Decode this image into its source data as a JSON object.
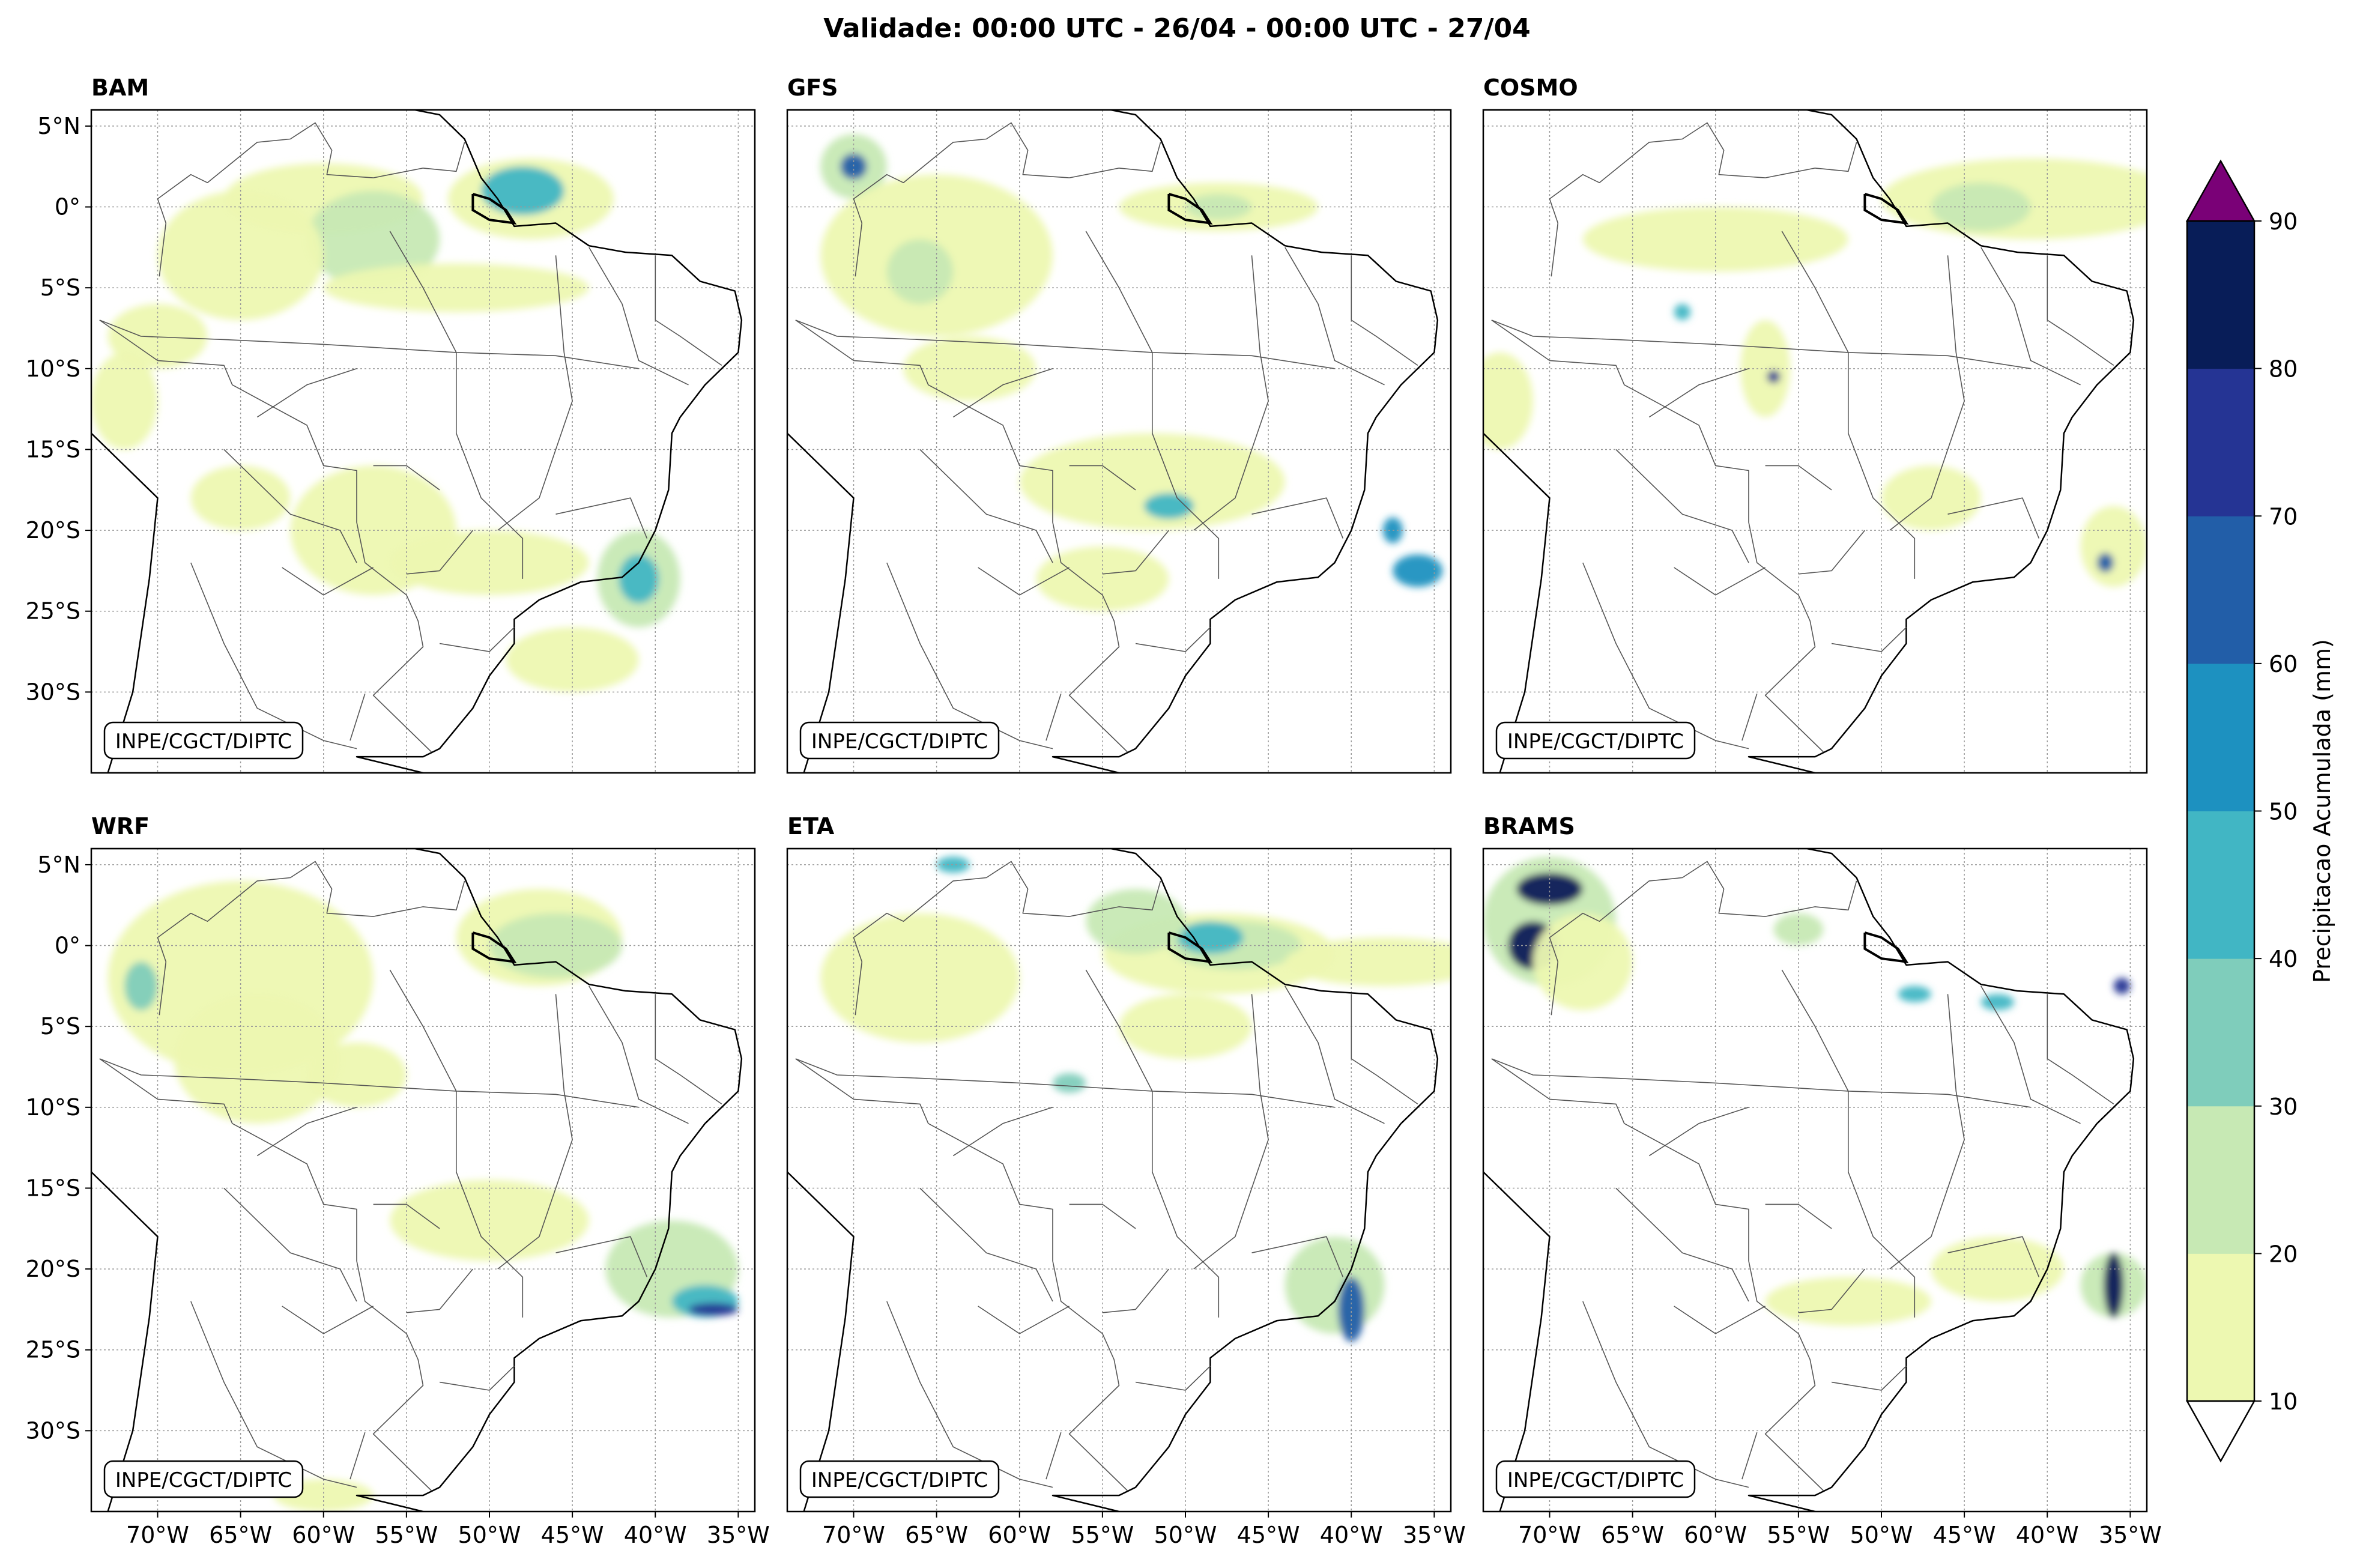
{
  "title": "Validade: 00:00 UTC - 26/04 - 00:00 UTC - 27/04",
  "credit": "INPE/CGCT/DIPTC",
  "panels": [
    {
      "name": "BAM",
      "blobs": [
        [
          -60,
          0.5,
          6,
          2.2,
          15
        ],
        [
          -57,
          -2,
          4,
          3,
          22
        ],
        [
          -47.5,
          0.5,
          5,
          2.5,
          15
        ],
        [
          -48,
          1,
          2.5,
          1.5,
          42
        ],
        [
          -52,
          -5,
          8,
          1.5,
          12
        ],
        [
          -65,
          -3,
          5,
          4,
          12
        ],
        [
          -72,
          -12,
          2,
          3,
          15
        ],
        [
          -65,
          -18,
          3,
          2,
          18
        ],
        [
          -57,
          -20,
          5,
          4,
          12
        ],
        [
          -50,
          -22,
          6,
          2,
          12
        ],
        [
          -41,
          -23,
          2.5,
          3,
          25
        ],
        [
          -41,
          -23,
          1.2,
          1.5,
          40
        ],
        [
          -45,
          -28,
          4,
          2,
          12
        ],
        [
          -70,
          -8,
          3,
          2,
          12
        ]
      ]
    },
    {
      "name": "GFS",
      "blobs": [
        [
          -70,
          2.5,
          2,
          2,
          25
        ],
        [
          -70,
          2.5,
          0.8,
          0.8,
          60
        ],
        [
          -65,
          -3,
          7,
          5,
          15
        ],
        [
          -66,
          -4,
          2,
          2,
          28
        ],
        [
          -48,
          0,
          6,
          1.5,
          15
        ],
        [
          -48,
          0,
          2,
          0.8,
          25
        ],
        [
          -52,
          -17,
          8,
          3,
          15
        ],
        [
          -51,
          -18.5,
          1.5,
          0.8,
          40
        ],
        [
          -55,
          -23,
          4,
          2,
          12
        ],
        [
          -37.5,
          -20,
          0.6,
          0.8,
          55
        ],
        [
          -36,
          -22.5,
          1.5,
          1,
          55
        ],
        [
          -63,
          -10,
          4,
          2,
          12
        ]
      ]
    },
    {
      "name": "COSMO",
      "blobs": [
        [
          -41,
          0.5,
          9,
          2.5,
          15
        ],
        [
          -44,
          0,
          3,
          1.5,
          22
        ],
        [
          -60,
          -2,
          8,
          2,
          12
        ],
        [
          -57,
          -10,
          1.5,
          3,
          12
        ],
        [
          -56.5,
          -10.5,
          0.4,
          0.4,
          70
        ],
        [
          -36,
          -21,
          2,
          2.5,
          18
        ],
        [
          -36.5,
          -22,
          0.5,
          0.6,
          60
        ],
        [
          -73,
          -12,
          2,
          3,
          15
        ],
        [
          -62,
          -6.5,
          0.5,
          0.5,
          45
        ],
        [
          -47,
          -18,
          3,
          2,
          12
        ]
      ]
    },
    {
      "name": "WRF",
      "blobs": [
        [
          -65,
          -2,
          8,
          6,
          15
        ],
        [
          -64,
          -7,
          5,
          4,
          15
        ],
        [
          -47,
          0.5,
          5,
          3,
          15
        ],
        [
          -46,
          0,
          4,
          2,
          22
        ],
        [
          -50,
          -17,
          6,
          2.5,
          15
        ],
        [
          -39,
          -20,
          4,
          3,
          22
        ],
        [
          -37,
          -22,
          2,
          1,
          45
        ],
        [
          -36.5,
          -22.5,
          1.5,
          0.4,
          70
        ],
        [
          -71,
          -2.5,
          1,
          1.5,
          35
        ],
        [
          -58,
          -8,
          3,
          2,
          12
        ],
        [
          -60,
          -34,
          3,
          1,
          12
        ]
      ]
    },
    {
      "name": "ETA",
      "blobs": [
        [
          -48,
          -0.5,
          7,
          2.5,
          15
        ],
        [
          -47,
          0,
          4,
          1.5,
          25
        ],
        [
          -48.5,
          0.5,
          2,
          1,
          40
        ],
        [
          -38,
          -1,
          6,
          1.5,
          15
        ],
        [
          -66,
          -2,
          6,
          4,
          15
        ],
        [
          -53,
          1.5,
          3,
          2,
          22
        ],
        [
          -64,
          5,
          1,
          0.5,
          40
        ],
        [
          -57,
          -8.5,
          1,
          0.6,
          30
        ],
        [
          -50,
          -5,
          4,
          2,
          12
        ],
        [
          -41,
          -21,
          3,
          3,
          20
        ],
        [
          -40,
          -22.5,
          0.8,
          2,
          60
        ]
      ]
    },
    {
      "name": "BRAMS",
      "blobs": [
        [
          -70,
          1.5,
          4,
          4,
          20
        ],
        [
          -70,
          3.5,
          2,
          1,
          85
        ],
        [
          -71,
          0,
          1.5,
          1.5,
          85
        ],
        [
          -68,
          -1,
          3,
          3,
          15
        ],
        [
          -52,
          -22,
          5,
          1.5,
          12
        ],
        [
          -43,
          -20,
          4,
          2,
          12
        ],
        [
          -36,
          -21,
          2,
          2,
          20
        ],
        [
          -36,
          -21,
          0.6,
          2,
          85
        ],
        [
          -48,
          -3,
          1,
          0.5,
          40
        ],
        [
          -43,
          -3.5,
          1,
          0.5,
          45
        ],
        [
          -35.5,
          -2.5,
          0.5,
          0.5,
          70
        ],
        [
          -55,
          1,
          1.5,
          1,
          25
        ]
      ]
    }
  ],
  "lon_ticks": [
    -70,
    -65,
    -60,
    -55,
    -50,
    -45,
    -40,
    -35
  ],
  "lat_ticks": [
    5,
    0,
    -5,
    -10,
    -15,
    -20,
    -25,
    -30
  ],
  "lon_labels": [
    "70°W",
    "65°W",
    "60°W",
    "55°W",
    "50°W",
    "45°W",
    "40°W",
    "35°W"
  ],
  "lat_labels": [
    "5°N",
    "0°",
    "5°S",
    "10°S",
    "15°S",
    "20°S",
    "25°S",
    "30°S"
  ],
  "colorbar": {
    "label": "Precipitacao Acumulada (mm)",
    "ticks": [
      10,
      20,
      30,
      40,
      50,
      60,
      70,
      80,
      90
    ],
    "tick_labels": [
      "10",
      "20",
      "30",
      "40",
      "50",
      "60",
      "70",
      "80",
      "90"
    ],
    "colors": [
      "#edf8b1",
      "#c7e9b4",
      "#7fcdbb",
      "#41b6c4",
      "#1d91c0",
      "#225ea8",
      "#253494",
      "#081d58"
    ],
    "over_color": "#7a0177",
    "under_color": "#ffffff"
  },
  "chart_data": {
    "type": "heatmap",
    "title": "Validade: 00:00 UTC - 26/04 - 00:00 UTC - 27/04",
    "xlabel": "",
    "ylabel": "",
    "xlim": [
      -74,
      -34
    ],
    "ylim": [
      -35,
      6
    ],
    "colorbar_range": [
      10,
      90
    ],
    "units": "mm"
  }
}
